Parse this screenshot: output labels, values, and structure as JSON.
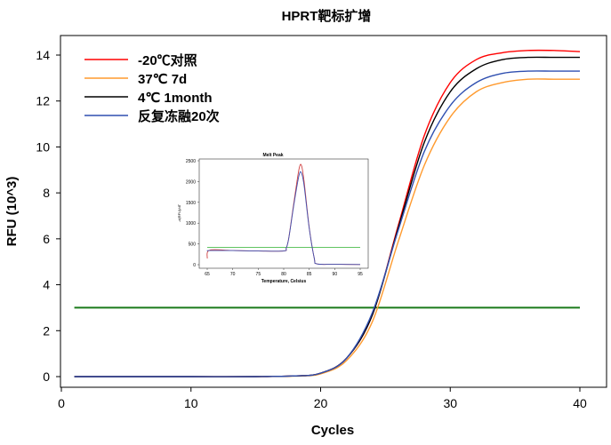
{
  "chart_data": [
    {
      "type": "line",
      "title": "HPRT靶标扩增",
      "xlabel": "Cycles",
      "ylabel": "RFU (10^3)",
      "xlim": [
        0,
        41
      ],
      "ylim": [
        -0.5,
        15
      ],
      "xticks": [
        0,
        10,
        20,
        30,
        40
      ],
      "yticks": [
        0,
        2,
        4,
        6,
        8,
        10,
        12,
        14
      ],
      "grid": false,
      "legend_position": "top-left",
      "x": [
        1,
        5,
        10,
        15,
        18,
        20,
        22,
        24,
        26,
        28,
        30,
        32,
        34,
        36,
        38,
        40
      ],
      "series": [
        {
          "name": "-20℃对照",
          "color": "#ff0000",
          "values": [
            0,
            0,
            0,
            0,
            0.03,
            0.15,
            0.8,
            2.7,
            6.6,
            10.5,
            12.8,
            13.8,
            14.1,
            14.2,
            14.2,
            14.15
          ]
        },
        {
          "name": "37℃  7d",
          "color": "#ff9a2e",
          "values": [
            0,
            0,
            0,
            0,
            0.02,
            0.12,
            0.7,
            2.4,
            5.9,
            9.2,
            11.3,
            12.4,
            12.8,
            12.95,
            12.95,
            12.95
          ]
        },
        {
          "name": "4℃  1month",
          "color": "#000000",
          "values": [
            0,
            0,
            0,
            0,
            0.03,
            0.15,
            0.8,
            2.7,
            6.5,
            10.2,
            12.4,
            13.4,
            13.8,
            13.9,
            13.9,
            13.9
          ]
        },
        {
          "name": "反复冻融20次",
          "color": "#2f4fb0",
          "values": [
            0,
            0,
            0,
            0,
            0.03,
            0.15,
            0.8,
            2.8,
            6.4,
            9.8,
            11.8,
            12.8,
            13.2,
            13.3,
            13.3,
            13.3
          ]
        }
      ],
      "threshold": {
        "value": 3,
        "color": "#1a7a1a"
      }
    },
    {
      "type": "line",
      "title": "Melt Peak",
      "xlabel": "Temperature, Celsius",
      "ylabel": "-d(RFU)/dT",
      "xlim": [
        64,
        96
      ],
      "ylim": [
        -80,
        2600
      ],
      "xticks": [
        65,
        70,
        75,
        80,
        85,
        90,
        95
      ],
      "yticks": [
        0,
        500,
        1000,
        1500,
        2000,
        2500
      ],
      "x": [
        65,
        65.5,
        70,
        75,
        80,
        80.5,
        81,
        82,
        83,
        83.5,
        84,
        85,
        86,
        86.5,
        90,
        95
      ],
      "series": [
        {
          "color": "#d04040",
          "values": [
            150,
            350,
            340,
            330,
            330,
            400,
            650,
            1500,
            2300,
            2380,
            2000,
            900,
            150,
            20,
            10,
            5
          ]
        },
        {
          "color": "#4050b0",
          "values": [
            330,
            340,
            340,
            330,
            330,
            400,
            640,
            1450,
            2150,
            2200,
            1900,
            880,
            150,
            20,
            10,
            5
          ]
        }
      ],
      "threshold": {
        "value": 420,
        "color": "#2db02d"
      }
    }
  ]
}
